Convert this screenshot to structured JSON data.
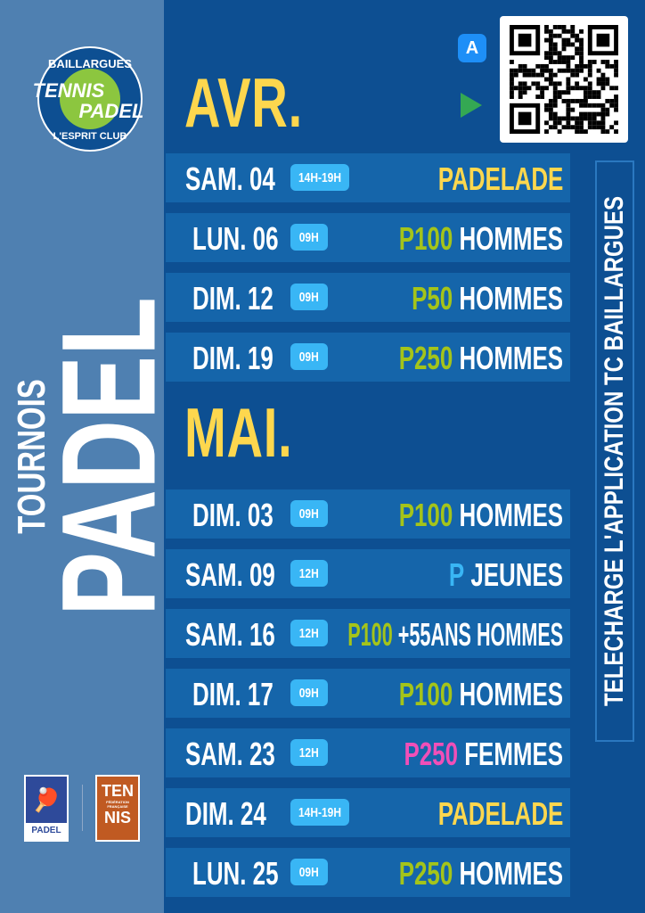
{
  "logo": {
    "top": "BAILLARGUES",
    "line1": "TENNIS",
    "line2": "PADEL",
    "bottom": "L'ESPRIT CLUB"
  },
  "title": {
    "small": "TOURNOIS",
    "big": "PADEL"
  },
  "partners": {
    "padel": "PADEL",
    "tennis_top": "TEN",
    "tennis_mid": "FÉDÉRATION FRANÇAISE",
    "tennis_bottom": "NIS"
  },
  "download_text": "TELECHARGE L'APPLICATION TC BAILLARGUES",
  "icons": [
    "app-store-icon",
    "google-play-icon",
    "qr-code"
  ],
  "colors": {
    "left_panel": "#4f80b1",
    "background": "#0d4f92",
    "row": "#1565aa",
    "badge": "#39b6f5",
    "month": "#fdd74e",
    "green": "#a4c41a",
    "pink": "#f04fb8",
    "blue": "#39b6f5"
  },
  "months": [
    {
      "label": "AVR.",
      "events": [
        {
          "date": "SAM. 04",
          "time": "14H-19H",
          "level": "",
          "name": "PADELADE",
          "name_color": "#fdd74e"
        },
        {
          "date": "LUN. 06",
          "time": "09H",
          "level": "P100",
          "level_color": "#a4c41a",
          "name": "HOMMES"
        },
        {
          "date": "DIM. 12",
          "time": "09H",
          "level": "P50",
          "level_color": "#a4c41a",
          "name": "HOMMES"
        },
        {
          "date": "DIM. 19",
          "time": "09H",
          "level": "P250",
          "level_color": "#a4c41a",
          "name": "HOMMES"
        }
      ]
    },
    {
      "label": "MAI.",
      "events": [
        {
          "date": "DIM. 03",
          "time": "09H",
          "level": "P100",
          "level_color": "#a4c41a",
          "name": "HOMMES"
        },
        {
          "date": "SAM. 09",
          "time": "12H",
          "level": "P",
          "level_color": "#39b6f5",
          "name": "JEUNES"
        },
        {
          "date": "SAM. 16",
          "time": "12H",
          "level": "P100",
          "level_color": "#a4c41a",
          "name": "+55ANS HOMMES"
        },
        {
          "date": "DIM. 17",
          "time": "09H",
          "level": "P100",
          "level_color": "#a4c41a",
          "name": "HOMMES"
        },
        {
          "date": "SAM. 23",
          "time": "12H",
          "level": "P250",
          "level_color": "#f04fb8",
          "name": "FEMMES"
        },
        {
          "date": "DIM. 24",
          "time": "14H-19H",
          "level": "",
          "name": "PADELADE",
          "name_color": "#fdd74e"
        },
        {
          "date": "LUN. 25",
          "time": "09H",
          "level": "P250",
          "level_color": "#a4c41a",
          "name": "HOMMES"
        }
      ]
    }
  ]
}
